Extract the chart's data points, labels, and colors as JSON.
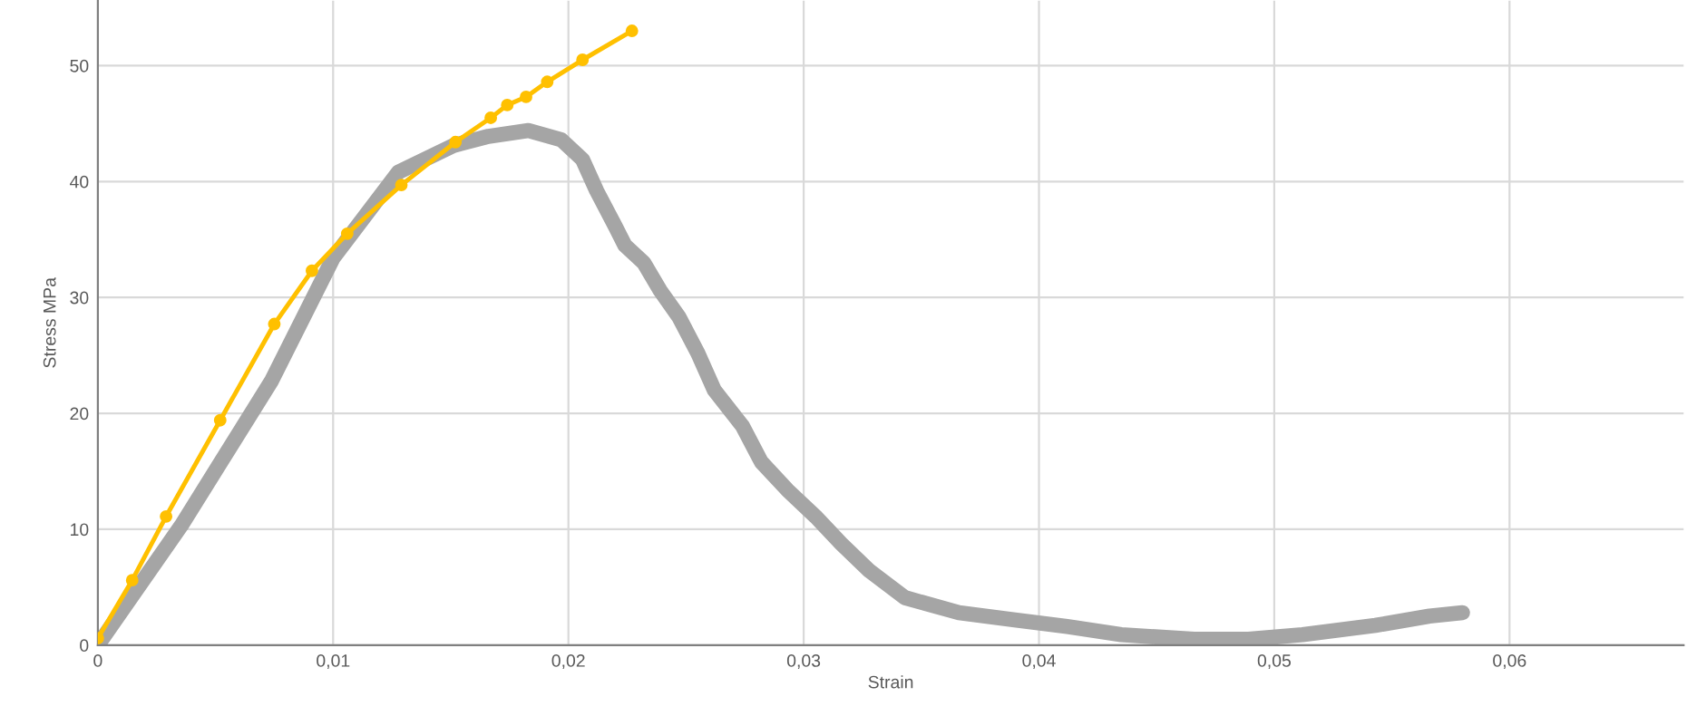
{
  "chart_data": {
    "type": "line",
    "xlabel": "Strain",
    "ylabel": "Stress MPa",
    "xlim": [
      0,
      0.0674
    ],
    "ylim": [
      0,
      55.6
    ],
    "xticks": [
      {
        "value": 0,
        "label": "0"
      },
      {
        "value": 0.01,
        "label": "0,01"
      },
      {
        "value": 0.02,
        "label": "0,02"
      },
      {
        "value": 0.03,
        "label": "0,03"
      },
      {
        "value": 0.04,
        "label": "0,04"
      },
      {
        "value": 0.05,
        "label": "0,05"
      },
      {
        "value": 0.06,
        "label": "0,06"
      }
    ],
    "yticks": [
      0,
      10,
      20,
      30,
      40,
      50
    ],
    "grid": true,
    "series": [
      {
        "color": "#a5a5a5",
        "marker": "none",
        "x": [
          0,
          0.00354,
          0.00738,
          0.01,
          0.01277,
          0.0151,
          0.0166,
          0.0183,
          0.0197,
          0.0206,
          0.0212,
          0.022,
          0.0224,
          0.0232,
          0.0239,
          0.0247,
          0.0255,
          0.0262,
          0.0274,
          0.0282,
          0.0293,
          0.0305,
          0.0316,
          0.0328,
          0.0343,
          0.0366,
          0.0389,
          0.0412,
          0.0435,
          0.0466,
          0.0489,
          0.0512,
          0.0543,
          0.0566,
          0.058
        ],
        "values": [
          0,
          10.3,
          22.8,
          33.4,
          40.8,
          43.1,
          43.9,
          44.4,
          43.6,
          41.9,
          39.2,
          36.1,
          34.5,
          33.0,
          30.6,
          28.3,
          25.2,
          22.0,
          18.9,
          15.8,
          13.4,
          11.1,
          8.75,
          6.4,
          4.1,
          2.8,
          2.2,
          1.6,
          0.9,
          0.5,
          0.5,
          0.9,
          1.7,
          2.5,
          2.8
        ]
      },
      {
        "color": "#ffc000",
        "marker": "circle",
        "x": [
          0,
          0.00146,
          0.0029,
          0.0052,
          0.0075,
          0.0091,
          0.0106,
          0.0129,
          0.0152,
          0.0167,
          0.0174,
          0.0182,
          0.0191,
          0.0206,
          0.0227
        ],
        "values": [
          0.6,
          5.6,
          11.1,
          19.4,
          27.7,
          32.3,
          35.5,
          39.7,
          43.4,
          45.5,
          46.6,
          47.3,
          48.6,
          50.5,
          53.0
        ]
      }
    ]
  }
}
